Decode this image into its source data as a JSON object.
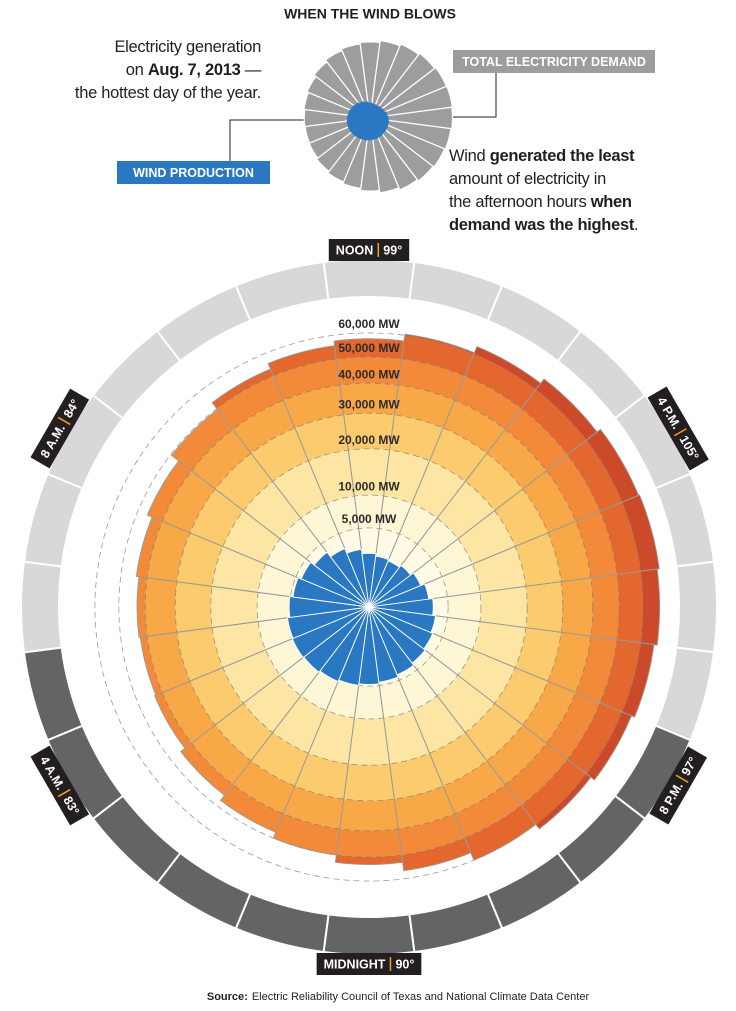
{
  "chart_data": {
    "type": "radial",
    "title": "WHEN THE WIND BLOWS",
    "intro": [
      "Electricity generation",
      "on ",
      "Aug. 7, 2013",
      " —",
      "the hottest day of the year."
    ],
    "annotation": [
      "Wind ",
      "generated the least",
      "amount of electricity in",
      "the afternoon hours ",
      "when",
      "demand was the highest",
      "."
    ],
    "categories": [
      "MIDNIGHT",
      null,
      null,
      null,
      "4 A.M.",
      null,
      null,
      null,
      "8 A.M.",
      null,
      null,
      null,
      "NOON",
      null,
      null,
      null,
      "4 P.M.",
      null,
      null,
      null,
      "8 P.M.",
      null,
      null,
      null
    ],
    "temperatures": [
      90,
      null,
      null,
      null,
      83,
      null,
      null,
      null,
      84,
      null,
      null,
      null,
      99,
      null,
      null,
      null,
      105,
      null,
      null,
      null,
      97,
      null,
      null,
      null
    ],
    "temperature_labels": [
      "90°",
      null,
      null,
      null,
      "83°",
      null,
      null,
      null,
      "84°",
      null,
      null,
      null,
      "99°",
      null,
      null,
      null,
      "105°",
      null,
      null,
      null,
      "97°",
      null,
      null,
      null
    ],
    "series": [
      {
        "name": "TOTAL ELECTRICITY DEMAND",
        "color": "#9d9d9f",
        "values": [
          53000,
          50000,
          47500,
          45000,
          43000,
          42500,
          43000,
          44000,
          46000,
          49500,
          53000,
          55500,
          57500,
          60500,
          63500,
          66000,
          68000,
          68500,
          67500,
          66000,
          64500,
          62500,
          60000,
          56500
        ]
      },
      {
        "name": "WIND PRODUCTION",
        "color": "#2a78c2",
        "values": [
          4800,
          5000,
          5200,
          5400,
          5500,
          5400,
          5100,
          4700,
          4300,
          3800,
          3200,
          2700,
          2300,
          2100,
          2000,
          2200,
          2500,
          2900,
          3300,
          3600,
          3800,
          4000,
          4300,
          4600
        ]
      }
    ],
    "rscale": "sqrt",
    "rlim": [
      0,
      70000
    ],
    "rticks": [
      {
        "value": 5000,
        "label": "5,000 MW"
      },
      {
        "value": 10000,
        "label": "10,000 MW"
      },
      {
        "value": 20000,
        "label": "20,000 MW"
      },
      {
        "value": 30000,
        "label": "30,000 MW"
      },
      {
        "value": 40000,
        "label": "40,000 MW"
      },
      {
        "value": 50000,
        "label": "50,000 MW"
      },
      {
        "value": 60000,
        "label": "60,000 MW"
      }
    ],
    "band_colors": [
      "#fffbe4",
      "#fef7d6",
      "#fde6a4",
      "#fccb6e",
      "#f9a848",
      "#f28a3a",
      "#e4672d",
      "#cc4a29"
    ],
    "ring_colors": [
      "#636466",
      "#636466",
      "#636466",
      "#636466",
      "#636466",
      "#636466",
      "#d9d8d8",
      "#d9d8d8",
      "#d9d8d8",
      "#d9d8d8",
      "#d9d8d8",
      "#d9d8d8",
      "#d9d8d8",
      "#d9d8d8",
      "#d9d8d8",
      "#d9d8d8",
      "#d9d8d8",
      "#d9d8d8",
      "#d9d8d8",
      "#d9d8d8",
      "#636466",
      "#636466",
      "#636466",
      "#636466"
    ],
    "source_label": "Source:",
    "source": "Electric Reliability Council of Texas and National Climate Data Center"
  }
}
